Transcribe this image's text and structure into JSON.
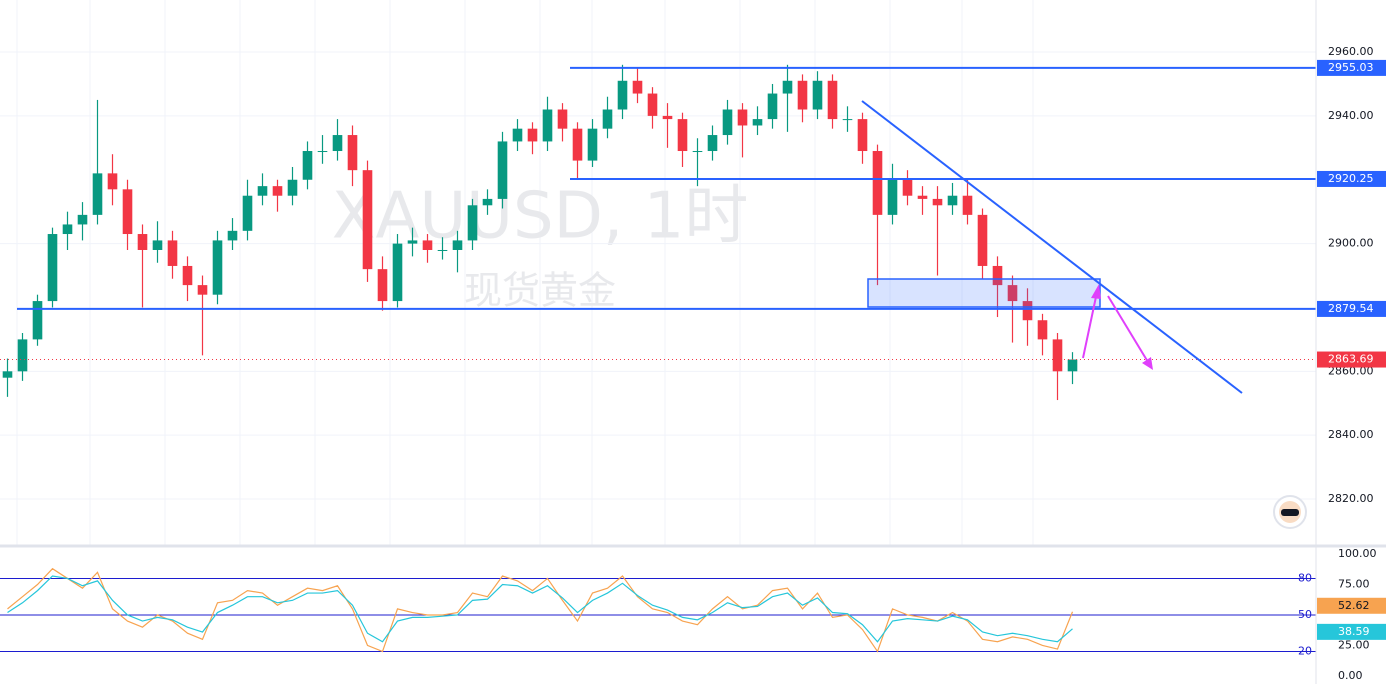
{
  "chart_data": {
    "type": "candlestick",
    "watermark": "XAUUSD, 1时",
    "watermark_sub": "现货黄金",
    "up_color": "#089981",
    "down_color": "#f23645",
    "ylim": [
      2805.6,
      2976.3
    ],
    "yticks": [
      {
        "value": 2960,
        "label": "2960.00"
      },
      {
        "value": 2940,
        "label": "2940.00"
      },
      {
        "value": 2900,
        "label": "2900.00"
      },
      {
        "value": 2860,
        "label": "2860.00"
      },
      {
        "value": 2840,
        "label": "2840.00"
      },
      {
        "value": 2820,
        "label": "2820.00"
      }
    ],
    "levels": [
      2955.03,
      2920.25,
      2879.54
    ],
    "level_color": "#2962ff",
    "last_price": 2863.69,
    "last_color": "#f23645",
    "ohlc": [
      [
        2858,
        2864,
        2852,
        2860
      ],
      [
        2860,
        2872,
        2857,
        2870
      ],
      [
        2870,
        2884,
        2868,
        2882
      ],
      [
        2882,
        2905,
        2880,
        2903
      ],
      [
        2903,
        2910,
        2898,
        2906
      ],
      [
        2906,
        2913,
        2901,
        2909
      ],
      [
        2909,
        2945,
        2906,
        2922
      ],
      [
        2922,
        2928,
        2912,
        2917
      ],
      [
        2917,
        2920,
        2898,
        2903
      ],
      [
        2903,
        2906,
        2880,
        2898
      ],
      [
        2898,
        2907,
        2894,
        2901
      ],
      [
        2901,
        2904,
        2889,
        2893
      ],
      [
        2893,
        2896,
        2882,
        2887
      ],
      [
        2887,
        2890,
        2865,
        2884
      ],
      [
        2884,
        2904,
        2881,
        2901
      ],
      [
        2901,
        2908,
        2898,
        2904
      ],
      [
        2904,
        2920,
        2901,
        2915
      ],
      [
        2915,
        2922,
        2912,
        2918
      ],
      [
        2918,
        2920,
        2910,
        2915
      ],
      [
        2915,
        2924,
        2912,
        2920
      ],
      [
        2920,
        2932,
        2917,
        2929
      ],
      [
        2929,
        2934,
        2925,
        2929
      ],
      [
        2929,
        2939,
        2926,
        2934
      ],
      [
        2934,
        2937,
        2918,
        2923
      ],
      [
        2923,
        2926,
        2888,
        2892
      ],
      [
        2892,
        2896,
        2879,
        2882
      ],
      [
        2882,
        2903,
        2880,
        2900
      ],
      [
        2900,
        2905,
        2896,
        2901
      ],
      [
        2901,
        2903,
        2894,
        2898
      ],
      [
        2898,
        2902,
        2895,
        2898
      ],
      [
        2898,
        2904,
        2891,
        2901
      ],
      [
        2901,
        2914,
        2898,
        2912
      ],
      [
        2912,
        2917,
        2909,
        2914
      ],
      [
        2914,
        2935,
        2911,
        2932
      ],
      [
        2932,
        2939,
        2929,
        2936
      ],
      [
        2936,
        2938,
        2928,
        2932
      ],
      [
        2932,
        2946,
        2929,
        2942
      ],
      [
        2942,
        2944,
        2932,
        2936
      ],
      [
        2936,
        2938,
        2920,
        2926
      ],
      [
        2926,
        2939,
        2924,
        2936
      ],
      [
        2936,
        2946,
        2933,
        2942
      ],
      [
        2942,
        2956,
        2939,
        2951
      ],
      [
        2951,
        2955,
        2944,
        2947
      ],
      [
        2947,
        2949,
        2936,
        2940
      ],
      [
        2940,
        2944,
        2930,
        2939
      ],
      [
        2939,
        2941,
        2924,
        2929
      ],
      [
        2929,
        2933,
        2918,
        2929
      ],
      [
        2929,
        2937,
        2926,
        2934
      ],
      [
        2934,
        2945,
        2931,
        2942
      ],
      [
        2942,
        2944,
        2927,
        2937
      ],
      [
        2937,
        2943,
        2934,
        2939
      ],
      [
        2939,
        2950,
        2936,
        2947
      ],
      [
        2947,
        2956,
        2935,
        2951
      ],
      [
        2951,
        2953,
        2938,
        2942
      ],
      [
        2942,
        2954,
        2939,
        2951
      ],
      [
        2951,
        2953,
        2936,
        2939
      ],
      [
        2939,
        2943,
        2935,
        2939
      ],
      [
        2939,
        2941,
        2925,
        2929
      ],
      [
        2929,
        2931,
        2887,
        2909
      ],
      [
        2909,
        2925,
        2906,
        2920
      ],
      [
        2920,
        2923,
        2912,
        2915
      ],
      [
        2915,
        2918,
        2909,
        2914
      ],
      [
        2914,
        2918,
        2890,
        2912
      ],
      [
        2912,
        2919,
        2909,
        2915
      ],
      [
        2915,
        2920,
        2906,
        2909
      ],
      [
        2909,
        2911,
        2889,
        2893
      ],
      [
        2893,
        2896,
        2877,
        2887
      ],
      [
        2887,
        2890,
        2869,
        2882
      ],
      [
        2882,
        2886,
        2868,
        2876
      ],
      [
        2876,
        2878,
        2865,
        2870
      ],
      [
        2870,
        2872,
        2851,
        2860
      ],
      [
        2860,
        2866,
        2856,
        2863.69
      ]
    ],
    "rsi": {
      "ylim": [
        -6.7,
        105
      ],
      "yticks": [
        {
          "value": 100,
          "label": "100.00"
        },
        {
          "value": 75,
          "label": "75.00"
        },
        {
          "value": 25,
          "label": "25.00"
        },
        {
          "value": 0,
          "label": "0.00"
        }
      ],
      "levels": [
        80,
        50,
        20
      ],
      "level_color": "#1c1ccf",
      "series": [
        {
          "color": "#f7a350",
          "values": [
            55,
            65,
            75,
            88,
            80,
            72,
            85,
            55,
            45,
            40,
            50,
            45,
            35,
            30,
            60,
            62,
            70,
            68,
            58,
            65,
            72,
            70,
            74,
            55,
            25,
            20,
            55,
            52,
            50,
            50,
            52,
            68,
            65,
            82,
            78,
            70,
            80,
            62,
            45,
            68,
            72,
            82,
            65,
            55,
            52,
            45,
            42,
            55,
            65,
            55,
            58,
            70,
            72,
            55,
            68,
            48,
            50,
            38,
            20,
            55,
            50,
            48,
            45,
            52,
            45,
            30,
            28,
            32,
            30,
            25,
            22,
            52.62
          ]
        },
        {
          "color": "#26c6da",
          "values": [
            52,
            60,
            70,
            82,
            80,
            74,
            78,
            62,
            50,
            45,
            48,
            46,
            40,
            36,
            52,
            58,
            65,
            65,
            60,
            62,
            68,
            68,
            70,
            58,
            35,
            28,
            45,
            48,
            48,
            49,
            50,
            62,
            63,
            75,
            74,
            68,
            74,
            64,
            52,
            62,
            68,
            76,
            66,
            58,
            54,
            48,
            46,
            52,
            60,
            56,
            57,
            65,
            68,
            58,
            64,
            52,
            51,
            42,
            28,
            45,
            47,
            46,
            45,
            49,
            46,
            36,
            33,
            35,
            33,
            30,
            28,
            38.59
          ]
        }
      ]
    }
  }
}
